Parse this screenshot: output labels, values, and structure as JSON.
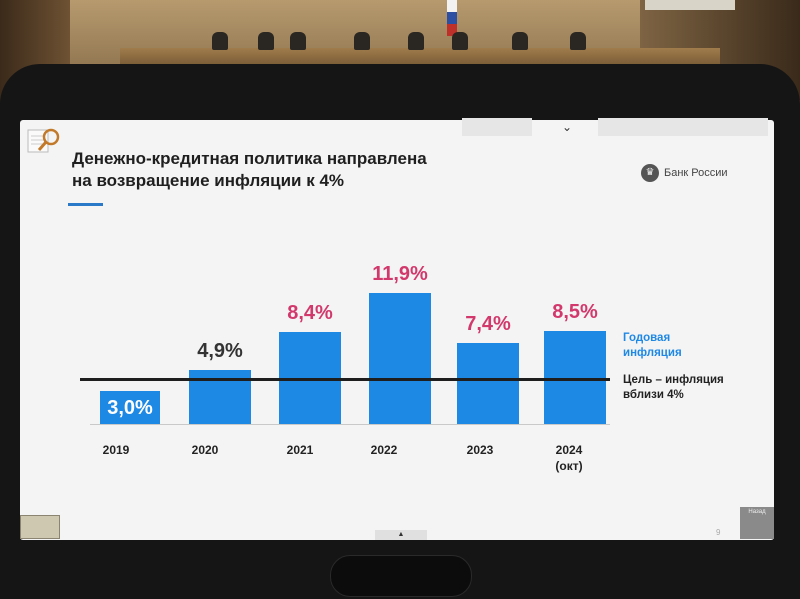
{
  "slide": {
    "title_line1": "Денежно-кредитная политика направлена",
    "title_line2": "на возвращение инфляции к 4%",
    "brand": "Банк России",
    "page_number": "9",
    "next_label": "Назад"
  },
  "legend": {
    "annual_line1": "Годовая",
    "annual_line2": "инфляция",
    "target_line1": "Цель – инфляция",
    "target_line2": "вблизи 4%"
  },
  "colors": {
    "bar": "#1e88e5",
    "highlight": "#d2386c",
    "target": "#1e1e1e"
  },
  "chart_data": {
    "type": "bar",
    "categories": [
      "2019",
      "2020",
      "2021",
      "2022",
      "2023",
      "2024 (окт)"
    ],
    "values": [
      3.0,
      4.9,
      8.4,
      11.9,
      7.4,
      8.5
    ],
    "data_labels": [
      "3,0%",
      "4,9%",
      "8,4%",
      "11,9%",
      "7,4%",
      "8,5%"
    ],
    "reference_line": 4.0,
    "ylim": [
      0,
      12.5
    ],
    "legend": [
      "Годовая инфляция",
      "Цель – инфляция вблизи 4%"
    ],
    "title": "Денежно-кредитная политика направлена на возвращение инфляции к 4%"
  },
  "years": {
    "y2019": "2019",
    "y2020": "2020",
    "y2021": "2021",
    "y2022": "2022",
    "y2023": "2023",
    "y2024": "2024",
    "y2024_note": "(окт)"
  }
}
